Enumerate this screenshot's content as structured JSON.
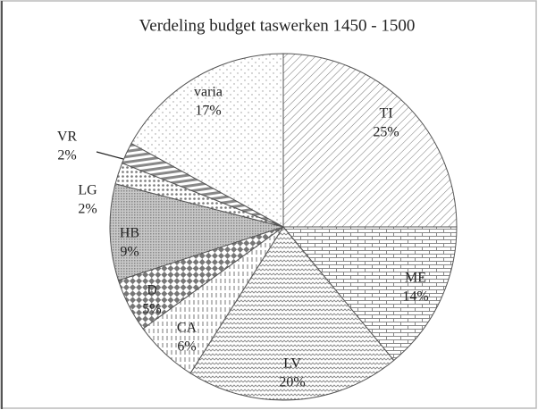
{
  "chart_data": {
    "type": "pie",
    "title": "Verdeling budget taswerken 1450 - 1500",
    "categories": [
      "TI",
      "ME",
      "LV",
      "CA",
      "D",
      "HB",
      "LG",
      "VR",
      "varia"
    ],
    "values": [
      25,
      14,
      20,
      6,
      5,
      9,
      2,
      2,
      17
    ],
    "value_labels": [
      "25%",
      "14%",
      "20%",
      "6%",
      "5%",
      "9%",
      "2%",
      "2%",
      "17%"
    ]
  }
}
